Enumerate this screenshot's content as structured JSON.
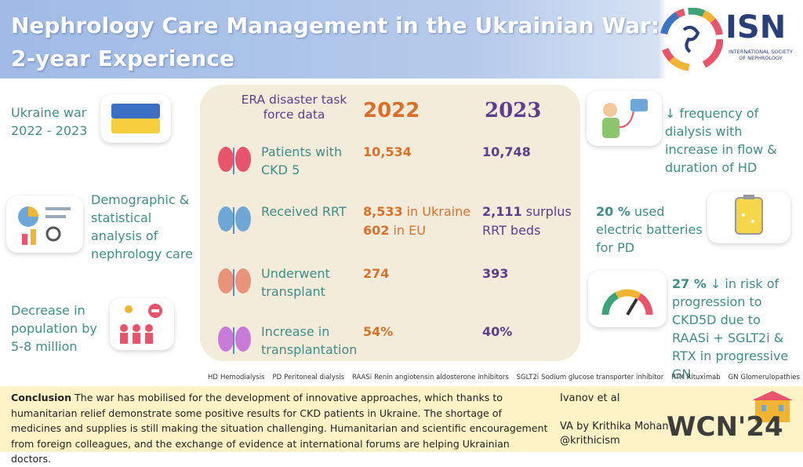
{
  "header": {
    "title_lines": [
      "Nephrology Care Management in the Ukrainian War:",
      "2-year Experience"
    ],
    "logo": {
      "name": "ISN",
      "subtitle": "INTERNATIONAL SOCIETY OF NEPHROLOGY"
    }
  },
  "left_notes": [
    "Ukraine war 2022 - 2023",
    "Demographic & statistical analysis of nephrology care",
    "Decrease in population by 5-8 million"
  ],
  "table": {
    "header": "ERA disaster task force data",
    "columns": [
      "2022",
      "2023"
    ],
    "rows": [
      {
        "label": "Patients with CKD 5",
        "cells": [
          [
            {
              "value": "10,534"
            }
          ],
          [
            {
              "value": "10,748"
            }
          ]
        ]
      },
      {
        "label": "Received RRT",
        "cells": [
          [
            {
              "value": "8,533",
              "text": "in Ukraine"
            },
            {
              "value": "602",
              "text": "in EU"
            }
          ],
          [
            {
              "value": "2,111",
              "text": "surplus RRT beds"
            }
          ]
        ]
      },
      {
        "label": "Underwent transplant",
        "cells": [
          [
            {
              "value": "274"
            }
          ],
          [
            {
              "value": "393"
            }
          ]
        ]
      },
      {
        "label": "Increase in transplantation",
        "cells": [
          [
            {
              "value": "54%"
            }
          ],
          [
            {
              "value": "40%"
            }
          ]
        ]
      }
    ]
  },
  "right_notes": [
    {
      "text": "↓ frequency of dialysis with increase in flow & duration of HD"
    },
    {
      "value": "20 %",
      "text": "used electric batteries for PD"
    },
    {
      "value": "27 %",
      "text": "↓ in risk of progression to CKD5D due to RAASi + SGLT2i & RTX in progressive GN"
    }
  ],
  "abbreviations": [
    {
      "abbr": "HD",
      "meaning": "Hemodialysis"
    },
    {
      "abbr": "PD",
      "meaning": "Peritoneal dialysis"
    },
    {
      "abbr": "RAASi",
      "meaning": "Renin angiotensin aldosterone inhibitors"
    },
    {
      "abbr": "SGLT2i",
      "meaning": "Sodium glucose transporter inhibitor"
    },
    {
      "abbr": "RTX",
      "meaning": "Rituximab"
    },
    {
      "abbr": "GN",
      "meaning": "Glomerulopathies"
    }
  ],
  "footer": {
    "conclusion_label": "Conclusion",
    "conclusion_text": "The war has mobilised for the development of innovative approaches, which thanks to humanitarian relief demonstrate some positive results for CKD patients in Ukraine. The shortage of medicines and supplies is still making the situation challenging. Humanitarian and scientific encouragement from foreign colleagues, and the exchange of evidence at international forums are helping Ukrainian doctors.",
    "author": "Ivanov et al",
    "credit": "VA by Krithika Mohan",
    "handle": "@krithicism",
    "event": "WCN'24"
  }
}
